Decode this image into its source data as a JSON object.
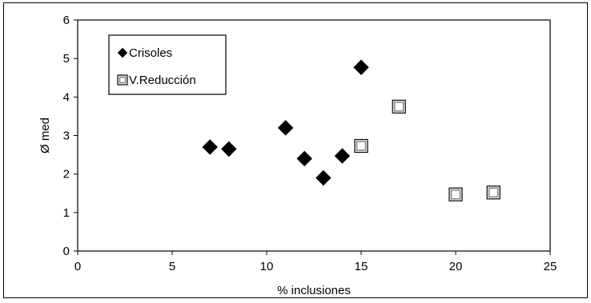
{
  "chart_data": {
    "type": "scatter",
    "title": "",
    "xlabel": "% inclusiones",
    "ylabel": "Ø med",
    "xlim": [
      0,
      25
    ],
    "ylim": [
      0,
      6
    ],
    "x_ticks": [
      "0",
      "5",
      "10",
      "15",
      "20",
      "25"
    ],
    "y_ticks": [
      "0",
      "1",
      "2",
      "3",
      "4",
      "5",
      "6"
    ],
    "grid": false,
    "legend_position": "top-left",
    "series": [
      {
        "name": "Crisoles",
        "marker": "filled-diamond",
        "color": "#000000",
        "points": [
          {
            "x": 7,
            "y": 2.7
          },
          {
            "x": 8,
            "y": 2.65
          },
          {
            "x": 11,
            "y": 3.2
          },
          {
            "x": 12,
            "y": 2.4
          },
          {
            "x": 13,
            "y": 1.9
          },
          {
            "x": 14,
            "y": 2.47
          },
          {
            "x": 15,
            "y": 4.77
          }
        ]
      },
      {
        "name": "V.Reducción",
        "marker": "open-square",
        "color": "#000000",
        "points": [
          {
            "x": 15,
            "y": 2.73
          },
          {
            "x": 17,
            "y": 3.75
          },
          {
            "x": 20,
            "y": 1.47
          },
          {
            "x": 22,
            "y": 1.52
          }
        ]
      }
    ]
  }
}
